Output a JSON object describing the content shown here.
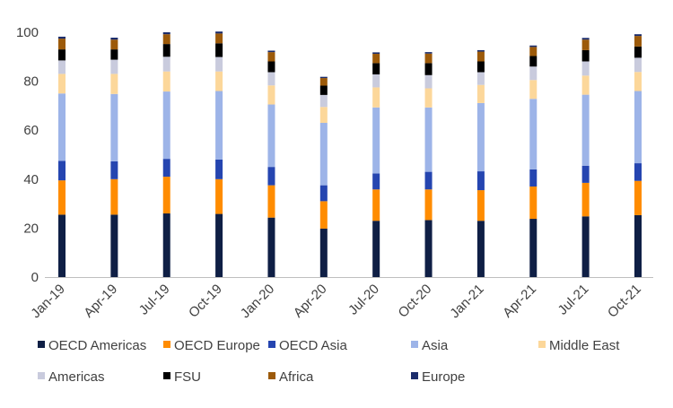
{
  "chart_data": {
    "type": "bar",
    "stacked": true,
    "title": "",
    "xlabel": "",
    "ylabel": "",
    "ylim": [
      0,
      100
    ],
    "yticks": [
      0,
      20,
      40,
      60,
      80,
      100
    ],
    "grid": false,
    "legend_position": "bottom",
    "categories": [
      "Jan-19",
      "Apr-19",
      "Jul-19",
      "Oct-19",
      "Jan-20",
      "Apr-20",
      "Jul-20",
      "Oct-20",
      "Jan-21",
      "Apr-21",
      "Jul-21",
      "Oct-21"
    ],
    "series": [
      {
        "name": "OECD Americas",
        "color": "#0f1f45",
        "values": [
          25.5,
          25.5,
          26.0,
          25.8,
          24.3,
          19.8,
          23.0,
          23.3,
          23.0,
          23.8,
          24.8,
          25.3
        ]
      },
      {
        "name": "OECD Europe",
        "color": "#ff8c00",
        "values": [
          14.0,
          14.5,
          15.0,
          14.2,
          13.2,
          11.2,
          12.8,
          12.5,
          12.5,
          13.2,
          13.7,
          14.0
        ]
      },
      {
        "name": "OECD Asia",
        "color": "#2545b0",
        "values": [
          8.0,
          7.3,
          7.3,
          8.0,
          7.5,
          6.5,
          6.5,
          7.2,
          7.7,
          7.0,
          7.0,
          7.2
        ]
      },
      {
        "name": "Asia",
        "color": "#9db4e8",
        "values": [
          27.5,
          27.5,
          27.5,
          28.0,
          25.5,
          25.5,
          27.0,
          26.3,
          27.9,
          28.8,
          29.0,
          29.5
        ]
      },
      {
        "name": "Middle East",
        "color": "#fcd79a",
        "values": [
          8.0,
          8.2,
          8.2,
          8.0,
          7.8,
          6.5,
          8.2,
          7.8,
          7.4,
          7.7,
          7.8,
          7.8
        ]
      },
      {
        "name": "Americas",
        "color": "#c9cbdd",
        "values": [
          5.5,
          5.8,
          6.0,
          5.9,
          5.4,
          4.9,
          5.3,
          5.4,
          5.2,
          5.5,
          5.8,
          5.8
        ]
      },
      {
        "name": "FSU",
        "color": "#000000",
        "values": [
          4.5,
          4.2,
          5.2,
          5.6,
          4.4,
          3.8,
          4.6,
          4.9,
          4.4,
          4.3,
          4.6,
          4.6
        ]
      },
      {
        "name": "Africa",
        "color": "#9c5a0a",
        "values": [
          4.4,
          4.0,
          4.0,
          4.0,
          3.8,
          3.1,
          3.8,
          3.9,
          4.0,
          3.7,
          4.3,
          4.3
        ]
      },
      {
        "name": "Europe",
        "color": "#1b2c6b",
        "values": [
          0.8,
          0.8,
          0.8,
          0.8,
          0.6,
          0.5,
          0.6,
          0.6,
          0.6,
          0.6,
          0.7,
          0.7
        ]
      }
    ]
  }
}
